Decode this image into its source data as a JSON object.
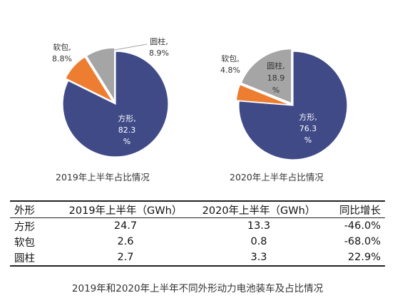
{
  "chart_data": [
    {
      "type": "pie",
      "subtitle": "2019年上半年占比情况",
      "slices": [
        {
          "name": "方形",
          "label": "方形,",
          "value": 82.3,
          "value_label": "82.3",
          "unit": "%",
          "color": "#3f4a87"
        },
        {
          "name": "软包",
          "label": "软包,",
          "value": 8.8,
          "value_label": "8.8%",
          "color": "#ed7d31"
        },
        {
          "name": "圆柱",
          "label": "圆柱,",
          "value": 8.9,
          "value_label": "8.9%",
          "color": "#a5a5a5"
        }
      ]
    },
    {
      "type": "pie",
      "subtitle": "2020年上半年占比情况",
      "slices": [
        {
          "name": "方形",
          "label": "方形,",
          "value": 76.3,
          "value_label": "76.3",
          "unit": "%",
          "color": "#3f4a87"
        },
        {
          "name": "软包",
          "label": "软包,",
          "value": 4.8,
          "value_label": "4.8%",
          "color": "#ed7d31"
        },
        {
          "name": "圆柱",
          "label": "圆柱,",
          "value": 18.9,
          "value_label": "18.9",
          "unit": "%",
          "color": "#a5a5a5"
        }
      ]
    },
    {
      "type": "table",
      "headers": [
        "外形",
        "2019年上半年（GWh）",
        "2020年上半年（GWh）",
        "同比增长"
      ],
      "rows": [
        [
          "方形",
          "24.7",
          "13.3",
          "-46.0%"
        ],
        [
          "软包",
          "2.6",
          "0.8",
          "-68.0%"
        ],
        [
          "圆柱",
          "2.7",
          "3.3",
          "22.9%"
        ]
      ]
    }
  ],
  "caption": "2019年和2020年上半年不同外形动力电池装车及占比情况"
}
